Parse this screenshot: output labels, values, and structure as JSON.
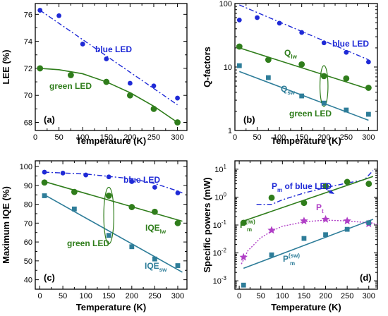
{
  "chart_data": [
    {
      "type": "scatter",
      "panel_label": "(a)",
      "xlabel": "Temperature (K)",
      "ylabel": "LEE (%)",
      "xlim": [
        0,
        320
      ],
      "ylim": [
        67.4,
        76.8
      ],
      "yscale": "linear",
      "xticks": [
        0,
        50,
        100,
        150,
        200,
        250,
        300
      ],
      "yticks": [
        68,
        70,
        72,
        74,
        76
      ],
      "colors": {
        "blue": "#1f2ad6",
        "green": "#2f7d1b"
      },
      "series": [
        {
          "name": "blue LED",
          "color": "#1f2ad6",
          "marker": "circle",
          "size": 3.4,
          "x": [
            10,
            50,
            100,
            150,
            200,
            250,
            300
          ],
          "y": [
            76.3,
            75.9,
            73.8,
            72.7,
            70.9,
            70.7,
            69.8
          ]
        },
        {
          "name": "green LED",
          "color": "#2f7d1b",
          "marker": "circle",
          "size": 4.4,
          "x": [
            10,
            75,
            150,
            200,
            250,
            300
          ],
          "y": [
            72.0,
            71.5,
            71.0,
            70.0,
            69.0,
            68.0
          ]
        }
      ],
      "lines": [
        {
          "color": "#1f2ad6",
          "dash": "7 3 2 3",
          "width": 1.4,
          "x": [
            10,
            300
          ],
          "y": [
            76.3,
            69.3
          ]
        },
        {
          "color": "#2f7d1b",
          "dash": "",
          "width": 1.6,
          "x": [
            10,
            50,
            100,
            150,
            200,
            250,
            300
          ],
          "y": [
            72.0,
            71.9,
            71.6,
            71.0,
            70.2,
            69.2,
            68.0
          ]
        }
      ],
      "annotations": [
        {
          "text": "blue LED",
          "color": "#1f2ad6"
        },
        {
          "text": "green LED",
          "color": "#2f7d1b"
        }
      ]
    },
    {
      "type": "scatter",
      "panel_label": "(b)",
      "xlabel": "Temperature (K)",
      "ylabel": "Q-factors",
      "xlim": [
        0,
        320
      ],
      "ylim": [
        1,
        100
      ],
      "yscale": "log",
      "xticks": [
        0,
        50,
        100,
        150,
        200,
        250,
        300
      ],
      "yticks": [
        1,
        10,
        100
      ],
      "series": [
        {
          "name": "blue LED",
          "color": "#1f2ad6",
          "marker": "circle",
          "size": 3.4,
          "x": [
            10,
            50,
            100,
            150,
            200,
            250,
            300
          ],
          "y": [
            55,
            60,
            49,
            35,
            24,
            17,
            12
          ]
        },
        {
          "name": "Q_lw",
          "color": "#2f7d1b",
          "marker": "circle",
          "size": 4.4,
          "x": [
            10,
            75,
            150,
            200,
            250,
            300
          ],
          "y": [
            21,
            13,
            11,
            7.2,
            6.6,
            4.7
          ]
        },
        {
          "name": "Q_sw",
          "color": "#2e7d99",
          "marker": "square",
          "size": 3.4,
          "x": [
            10,
            75,
            150,
            200,
            250,
            300
          ],
          "y": [
            10.5,
            6.8,
            3.5,
            2.7,
            2.1,
            1.8
          ]
        }
      ],
      "lines": [
        {
          "color": "#1f2ad6",
          "dash": "7 3 2 3",
          "width": 1.4,
          "x": [
            10,
            300
          ],
          "y": [
            95,
            13
          ]
        },
        {
          "color": "#2f7d1b",
          "dash": "",
          "width": 1.6,
          "x": [
            10,
            300
          ],
          "y": [
            20,
            4.5
          ]
        },
        {
          "color": "#2e7d99",
          "dash": "",
          "width": 1.6,
          "x": [
            10,
            300
          ],
          "y": [
            8.5,
            1.45
          ]
        }
      ],
      "ellipses": [
        {
          "cx": 200,
          "cy": 5.5,
          "rx": 9,
          "ry_top": 10.5,
          "ry_bottom": 2.4,
          "color": "#2f7d1b"
        }
      ],
      "annotations": [
        {
          "text": "blue LED",
          "color": "#1f2ad6"
        },
        {
          "text": "Q",
          "sub": "lw",
          "color": "#2f7d1b"
        },
        {
          "text": "Q",
          "sub": "sw",
          "color": "#2e7d99"
        },
        {
          "text": "green LED",
          "color": "#2f7d1b"
        }
      ]
    },
    {
      "type": "scatter",
      "panel_label": "(c)",
      "xlabel": "Temperature (K)",
      "ylabel": "Maximum IQE (%)",
      "xlim": [
        -10,
        320
      ],
      "ylim": [
        35,
        103
      ],
      "yscale": "linear",
      "xticks": [
        0,
        50,
        100,
        150,
        200,
        250,
        300
      ],
      "yticks": [
        40,
        50,
        60,
        70,
        80,
        90,
        100
      ],
      "series": [
        {
          "name": "blue LED",
          "color": "#1f2ad6",
          "marker": "circle",
          "size": 3.4,
          "x": [
            10,
            50,
            100,
            150,
            200,
            250,
            300
          ],
          "y": [
            97,
            96.5,
            95.5,
            94.5,
            92,
            89,
            86
          ]
        },
        {
          "name": "IQE_lw",
          "color": "#2f7d1b",
          "marker": "circle",
          "size": 4.4,
          "x": [
            10,
            75,
            150,
            200,
            250,
            300
          ],
          "y": [
            91.5,
            86.5,
            84.5,
            78.5,
            76,
            70
          ]
        },
        {
          "name": "IQE_sw",
          "color": "#2e7d99",
          "marker": "square",
          "size": 3.4,
          "x": [
            10,
            75,
            150,
            200,
            250,
            300
          ],
          "y": [
            84.5,
            77.5,
            63.5,
            57.5,
            51,
            47.5
          ]
        }
      ],
      "lines": [
        {
          "color": "#1f2ad6",
          "dash": "7 3 2 3",
          "width": 1.4,
          "x": [
            10,
            100,
            200,
            250,
            300,
            310
          ],
          "y": [
            97,
            96,
            93.5,
            91,
            87,
            86
          ]
        },
        {
          "color": "#2f7d1b",
          "dash": "",
          "width": 1.6,
          "x": [
            10,
            310
          ],
          "y": [
            92,
            71
          ]
        },
        {
          "color": "#2e7d99",
          "dash": "",
          "width": 1.6,
          "x": [
            10,
            310
          ],
          "y": [
            85,
            44
          ]
        }
      ],
      "ellipses": [
        {
          "cx": 150,
          "cy": 74,
          "rx": 11,
          "ry_top": 15,
          "ry_bottom": 15,
          "color": "#2f7d1b"
        }
      ],
      "annotations": [
        {
          "text": "blue LED",
          "color": "#1f2ad6"
        },
        {
          "text": "IQE",
          "sub": "lw",
          "color": "#2f7d1b"
        },
        {
          "text": "green LED",
          "color": "#2f7d1b"
        },
        {
          "text": "IQE",
          "sub": "sw",
          "color": "#2e7d99"
        }
      ]
    },
    {
      "type": "scatter",
      "panel_label": "(d)",
      "xlabel": "Temperature (K)",
      "ylabel": "Specific powers (mW)",
      "xlim": [
        -10,
        320
      ],
      "ylim": [
        0.0005,
        20
      ],
      "yscale": "log",
      "xticks": [
        0,
        50,
        100,
        150,
        200,
        250,
        300
      ],
      "yticks": [
        0.001,
        0.01,
        0.1,
        1,
        10
      ],
      "ytick_labels": [
        {
          "b": "10",
          "e": "-3"
        },
        {
          "b": "10",
          "e": "-2"
        },
        {
          "b": "10",
          "e": "-1"
        },
        {
          "b": "10",
          "e": "0"
        },
        {
          "b": "10",
          "e": "1"
        }
      ],
      "series": [
        {
          "name": "P_m^(lw)",
          "color": "#2f7d1b",
          "marker": "circle",
          "size": 4.4,
          "x": [
            10,
            75,
            150,
            200,
            250,
            300
          ],
          "y": [
            0.12,
            0.95,
            0.62,
            2.5,
            3.5,
            3.0
          ]
        },
        {
          "name": "P_t",
          "color": "#b03ec6",
          "marker": "star",
          "size": 6,
          "x": [
            10,
            75,
            150,
            200,
            250,
            300
          ],
          "y": [
            0.007,
            0.065,
            0.14,
            0.16,
            0.14,
            0.11
          ]
        },
        {
          "name": "P_m^(sw)",
          "color": "#2e7d99",
          "marker": "square",
          "size": 3.4,
          "x": [
            10,
            75,
            150,
            200,
            250,
            300
          ],
          "y": [
            0.0007,
            0.0085,
            0.033,
            0.045,
            0.07,
            0.12
          ]
        }
      ],
      "lines": [
        {
          "color": "#1f2ad6",
          "dash": "7 3 2 3",
          "width": 1.4,
          "x": [
            40,
            75,
            100,
            150,
            200,
            250,
            290,
            310
          ],
          "y": [
            0.55,
            0.55,
            0.8,
            1.4,
            2.2,
            3.2,
            4.2,
            9
          ]
        },
        {
          "color": "#2f7d1b",
          "dash": "",
          "width": 1.6,
          "x": [
            10,
            310
          ],
          "y": [
            0.14,
            5.5
          ]
        },
        {
          "color": "#b03ec6",
          "dash": "2 2",
          "width": 1.4,
          "x": [
            5,
            20,
            50,
            75,
            100,
            150,
            200,
            250,
            300,
            320
          ],
          "y": [
            0.004,
            0.012,
            0.035,
            0.06,
            0.09,
            0.13,
            0.15,
            0.14,
            0.12,
            0.105
          ]
        },
        {
          "color": "#2e7d99",
          "dash": "",
          "width": 1.6,
          "x": [
            10,
            310
          ],
          "y": [
            0.0028,
            0.16
          ]
        }
      ],
      "annotations": [
        {
          "text": "P",
          "sub": "m",
          "rest": " of blue LED",
          "color": "#1f2ad6"
        },
        {
          "text": "P",
          "sup": "(lw)",
          "sub": "m",
          "color": "#2f7d1b"
        },
        {
          "text": "P",
          "sub": "t",
          "color": "#b03ec6"
        },
        {
          "text": "P",
          "sup": "(sw)",
          "sub": "m",
          "color": "#2e7d99"
        }
      ]
    }
  ]
}
